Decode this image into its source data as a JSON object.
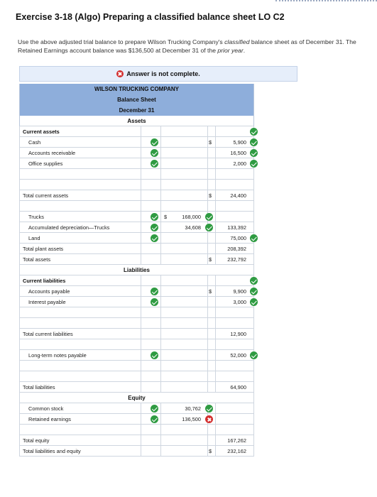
{
  "title": "Exercise 3-18 (Algo) Preparing a classified balance sheet LO C2",
  "instructions": {
    "part1": "Use the above adjusted trial balance to prepare Wilson Trucking Company's ",
    "italic1": "classified",
    "part2": " balance sheet as of December 31. The Retained Earnings account balance was $136,500 at December 31 of the ",
    "italic2": "prior year",
    "part3": "."
  },
  "banner": {
    "text": "Answer is not complete."
  },
  "sheet": {
    "company": "WILSON TRUCKING COMPANY",
    "statement": "Balance Sheet",
    "date": "December 31",
    "assets_header": "Assets",
    "liabilities_header": "Liabilities",
    "equity_header": "Equity",
    "rows": {
      "current_assets": "Current assets",
      "cash": {
        "label": "Cash",
        "dollar": "$",
        "value": "5,900"
      },
      "ar": {
        "label": "Accounts receivable",
        "value": "16,500"
      },
      "office": {
        "label": "Office supplies",
        "value": "2,000"
      },
      "total_current_assets": {
        "label": "Total current assets",
        "dollar": "$",
        "value": "24,400"
      },
      "trucks": {
        "label": "Trucks",
        "dollar": "$",
        "value": "168,000"
      },
      "accum": {
        "label": "Accumulated depreciation—Trucks",
        "value": "34,608",
        "net": "133,392"
      },
      "land": {
        "label": "Land",
        "value": "75,000"
      },
      "total_plant": {
        "label": "Total plant assets",
        "value": "208,392"
      },
      "total_assets": {
        "label": "Total assets",
        "dollar": "$",
        "value": "232,792"
      },
      "current_liabilities": "Current liabilities",
      "ap": {
        "label": "Accounts payable",
        "dollar": "$",
        "value": "9,900"
      },
      "ip": {
        "label": "Interest payable",
        "value": "3,000"
      },
      "total_current_liabilities": {
        "label": "Total current liabilities",
        "value": "12,900"
      },
      "ltnp": {
        "label": "Long-term notes payable",
        "value": "52,000"
      },
      "total_liabilities": {
        "label": "Total liabilities",
        "value": "64,900"
      },
      "common": {
        "label": "Common stock",
        "value": "30,762"
      },
      "retained": {
        "label": "Retained earnings",
        "value": "136,500"
      },
      "total_equity": {
        "label": "Total equity",
        "value": "167,262"
      },
      "total_le": {
        "label": "Total liabilities and equity",
        "dollar": "$",
        "value": "232,162"
      }
    }
  },
  "colors": {
    "header_blue": "#8eaedb",
    "banner_bg": "#e6eefa",
    "check_green": "#2f9b42",
    "error_red": "#d32f2f"
  }
}
